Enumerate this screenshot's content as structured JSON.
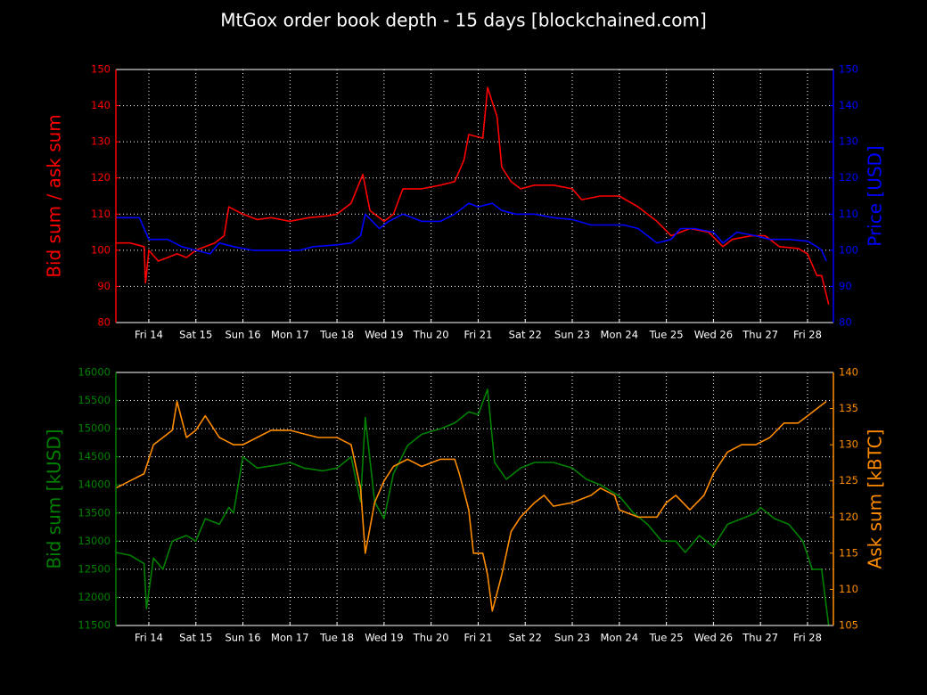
{
  "title": "MtGox order book depth - 15 days  [blockchained.com]",
  "chart_data": [
    {
      "type": "line",
      "ylabel": "Bid sum / ask sum",
      "y2label": "Price [USD]",
      "xlim": [
        13.3,
        28.55
      ],
      "xticks": [
        {
          "value": 14,
          "label": "Fri 14"
        },
        {
          "value": 15,
          "label": "Sat 15"
        },
        {
          "value": 16,
          "label": "Sun 16"
        },
        {
          "value": 17,
          "label": "Mon 17"
        },
        {
          "value": 18,
          "label": "Tue 18"
        },
        {
          "value": 19,
          "label": "Wed 19"
        },
        {
          "value": 20,
          "label": "Thu 20"
        },
        {
          "value": 21,
          "label": "Fri 21"
        },
        {
          "value": 22,
          "label": "Sat 22"
        },
        {
          "value": 23,
          "label": "Sun 23"
        },
        {
          "value": 24,
          "label": "Mon 24"
        },
        {
          "value": 25,
          "label": "Tue 25"
        },
        {
          "value": 26,
          "label": "Wed 26"
        },
        {
          "value": 27,
          "label": "Thu 27"
        },
        {
          "value": 28,
          "label": "Fri 28"
        }
      ],
      "ylim": [
        80,
        150
      ],
      "yticks": [
        80,
        90,
        100,
        110,
        120,
        130,
        140,
        150
      ],
      "y2lim": [
        80,
        150
      ],
      "y2ticks": [
        80,
        90,
        100,
        110,
        120,
        130,
        140,
        150
      ],
      "grid": true,
      "series": [
        {
          "color": "#ff0000",
          "axis": "y",
          "x": [
            13.3,
            13.6,
            13.9,
            13.93,
            14.0,
            14.2,
            14.4,
            14.6,
            14.8,
            15.0,
            15.2,
            15.4,
            15.6,
            15.7,
            16.0,
            16.3,
            16.6,
            17.0,
            17.4,
            17.8,
            18.0,
            18.3,
            18.55,
            18.7,
            19.0,
            19.2,
            19.4,
            19.8,
            20.2,
            20.5,
            20.7,
            20.8,
            21.1,
            21.2,
            21.4,
            21.5,
            21.7,
            21.9,
            22.2,
            22.6,
            23.0,
            23.2,
            23.6,
            24.0,
            24.4,
            24.8,
            25.1,
            25.5,
            25.9,
            26.2,
            26.4,
            26.8,
            27.1,
            27.4,
            27.8,
            28.0,
            28.2,
            28.3,
            28.45
          ],
          "values": [
            102,
            102,
            101,
            91,
            100,
            97,
            98,
            99,
            98,
            100,
            101,
            102,
            104,
            112,
            110,
            108.5,
            109,
            108,
            109,
            109.5,
            110,
            113,
            121,
            111,
            108,
            110,
            117,
            117,
            118,
            119,
            125,
            132,
            131,
            145,
            137,
            123,
            119,
            117,
            118,
            118,
            117,
            114,
            115,
            115,
            112,
            108,
            104,
            106,
            105,
            101,
            103,
            104,
            104,
            101,
            100.5,
            99,
            93,
            93,
            85
          ]
        },
        {
          "color": "#0000ff",
          "axis": "y2",
          "x": [
            13.3,
            13.8,
            14.0,
            14.4,
            14.7,
            15.0,
            15.3,
            15.5,
            15.8,
            16.2,
            16.8,
            17.2,
            17.5,
            18.0,
            18.3,
            18.5,
            18.6,
            18.9,
            19.1,
            19.4,
            19.8,
            20.2,
            20.5,
            20.8,
            21.0,
            21.3,
            21.5,
            21.8,
            22.2,
            22.6,
            23.0,
            23.4,
            23.8,
            24.1,
            24.4,
            24.6,
            24.8,
            25.1,
            25.3,
            25.6,
            26.0,
            26.2,
            26.5,
            26.9,
            27.2,
            27.6,
            28.0,
            28.2,
            28.3,
            28.4
          ],
          "values": [
            109,
            109,
            103,
            103,
            101,
            100,
            99,
            102,
            101,
            100,
            100,
            100,
            101,
            101.5,
            102,
            104,
            110,
            106,
            108,
            110,
            108,
            108,
            110,
            113,
            112,
            113,
            111,
            110,
            110,
            109,
            108.5,
            107,
            107,
            107,
            106,
            104,
            102,
            103,
            106,
            106,
            105,
            102,
            105,
            104,
            103,
            103,
            102.5,
            101,
            100,
            97
          ]
        }
      ]
    },
    {
      "type": "line",
      "ylabel": "Bid sum [kUSD]",
      "y2label": "Ask sum [kBTC]",
      "xlim": [
        13.3,
        28.55
      ],
      "xticks": [
        {
          "value": 14,
          "label": "Fri 14"
        },
        {
          "value": 15,
          "label": "Sat 15"
        },
        {
          "value": 16,
          "label": "Sun 16"
        },
        {
          "value": 17,
          "label": "Mon 17"
        },
        {
          "value": 18,
          "label": "Tue 18"
        },
        {
          "value": 19,
          "label": "Wed 19"
        },
        {
          "value": 20,
          "label": "Thu 20"
        },
        {
          "value": 21,
          "label": "Fri 21"
        },
        {
          "value": 22,
          "label": "Sat 22"
        },
        {
          "value": 23,
          "label": "Sun 23"
        },
        {
          "value": 24,
          "label": "Mon 24"
        },
        {
          "value": 25,
          "label": "Tue 25"
        },
        {
          "value": 26,
          "label": "Wed 26"
        },
        {
          "value": 27,
          "label": "Thu 27"
        },
        {
          "value": 28,
          "label": "Fri 28"
        }
      ],
      "ylim": [
        11500,
        16000
      ],
      "yticks": [
        11500,
        12000,
        12500,
        13000,
        13500,
        14000,
        14500,
        15000,
        15500,
        16000
      ],
      "y2lim": [
        105,
        140
      ],
      "y2ticks": [
        105,
        110,
        115,
        120,
        125,
        130,
        135,
        140
      ],
      "grid": true,
      "series": [
        {
          "color": "#008000",
          "axis": "y",
          "x": [
            13.3,
            13.6,
            13.9,
            13.95,
            14.1,
            14.3,
            14.5,
            14.8,
            15.0,
            15.2,
            15.5,
            15.7,
            15.8,
            16.0,
            16.3,
            16.7,
            17.0,
            17.3,
            17.7,
            18.0,
            18.3,
            18.5,
            18.6,
            18.8,
            19.0,
            19.2,
            19.5,
            19.8,
            20.2,
            20.5,
            20.8,
            21.0,
            21.2,
            21.35,
            21.6,
            21.9,
            22.2,
            22.6,
            23.0,
            23.3,
            23.6,
            24.0,
            24.3,
            24.6,
            24.9,
            25.2,
            25.4,
            25.7,
            26.0,
            26.3,
            26.6,
            26.9,
            27.0,
            27.3,
            27.6,
            27.9,
            28.1,
            28.3,
            28.45
          ],
          "values": [
            12800,
            12750,
            12600,
            11800,
            12700,
            12500,
            13000,
            13100,
            13000,
            13400,
            13300,
            13600,
            13500,
            14500,
            14300,
            14350,
            14400,
            14300,
            14250,
            14300,
            14500,
            13700,
            15200,
            13700,
            13400,
            14200,
            14700,
            14900,
            15000,
            15100,
            15300,
            15250,
            15700,
            14400,
            14100,
            14300,
            14400,
            14400,
            14300,
            14100,
            14000,
            13800,
            13500,
            13300,
            13000,
            13000,
            12800,
            13100,
            12900,
            13300,
            13400,
            13500,
            13600,
            13400,
            13300,
            13000,
            12500,
            12500,
            11500
          ]
        },
        {
          "color": "#ff8c00",
          "axis": "y2",
          "x": [
            13.3,
            13.6,
            13.9,
            14.1,
            14.3,
            14.5,
            14.6,
            14.8,
            15.0,
            15.2,
            15.5,
            15.8,
            16.0,
            16.3,
            16.6,
            17.0,
            17.3,
            17.6,
            18.0,
            18.3,
            18.5,
            18.6,
            18.8,
            19.0,
            19.2,
            19.5,
            19.8,
            20.2,
            20.5,
            20.6,
            20.8,
            20.9,
            21.1,
            21.2,
            21.3,
            21.5,
            21.7,
            21.9,
            22.2,
            22.4,
            22.6,
            23.0,
            23.4,
            23.6,
            23.9,
            24.0,
            24.4,
            24.8,
            25.0,
            25.2,
            25.5,
            25.8,
            26.0,
            26.3,
            26.6,
            26.9,
            27.2,
            27.5,
            27.8,
            28.0,
            28.2,
            28.4
          ],
          "values": [
            124,
            125,
            126,
            130,
            131,
            132,
            136,
            131,
            132,
            134,
            131,
            130,
            130,
            131,
            132,
            132,
            131.5,
            131,
            131,
            130,
            124,
            115,
            122,
            125,
            127,
            128,
            127,
            128,
            128,
            126,
            121,
            115,
            115,
            112,
            107,
            112,
            118,
            120,
            122,
            123,
            121.5,
            122,
            123,
            124,
            123,
            121,
            120,
            120,
            122,
            123,
            121,
            123,
            126,
            129,
            130,
            130,
            131,
            133,
            133,
            134,
            135,
            136
          ]
        }
      ]
    }
  ]
}
